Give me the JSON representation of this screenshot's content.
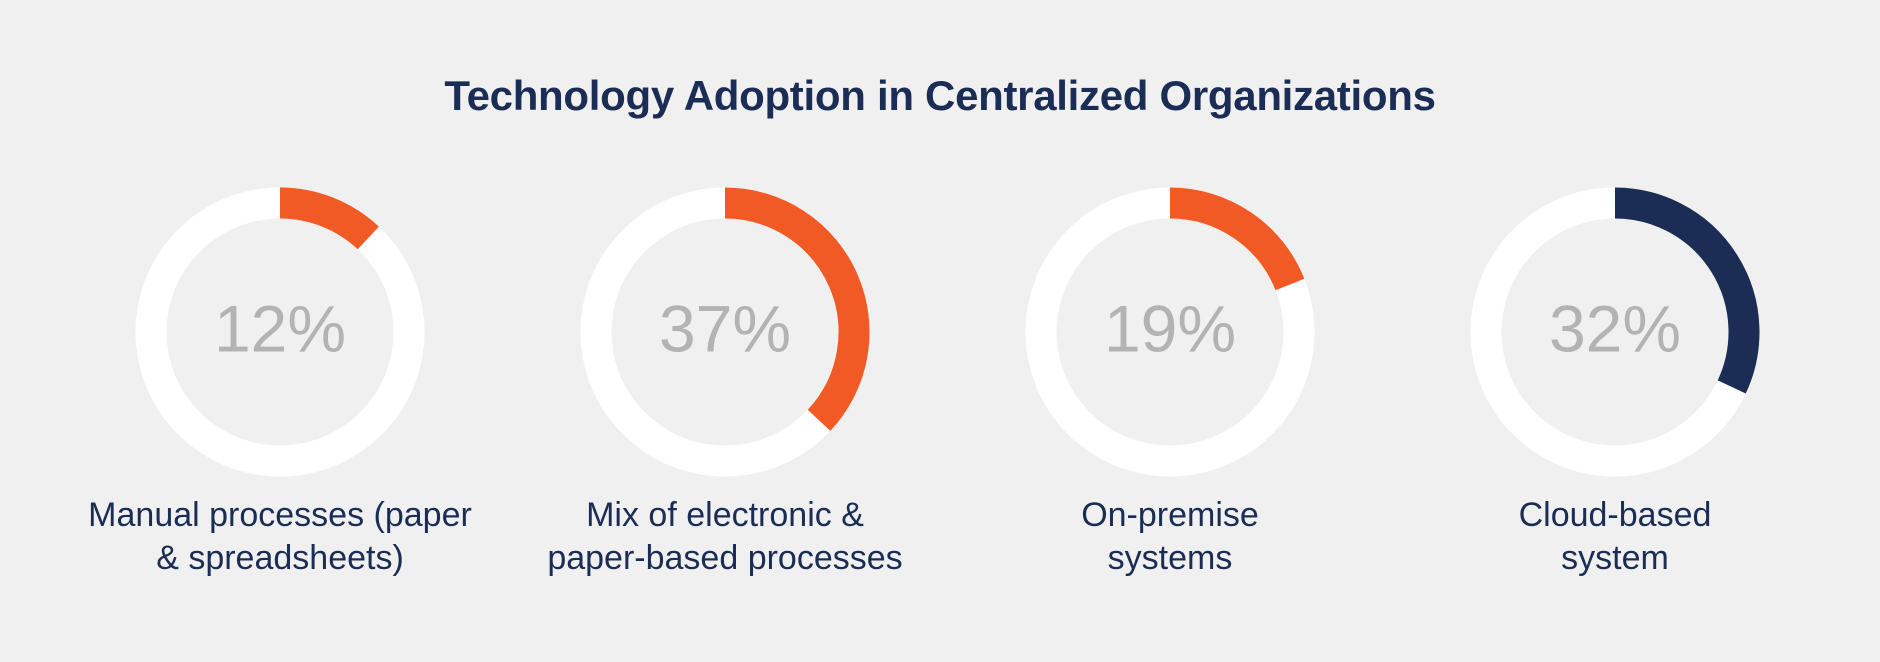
{
  "chart_data": {
    "type": "donut",
    "title": "Technology Adoption in Centralized Organizations",
    "categories": [
      "Manual processes (paper & spreadsheets)",
      "Mix of electronic & paper-based processes",
      "On-premise systems",
      "Cloud-based system"
    ],
    "values": [
      12,
      37,
      19,
      32
    ],
    "value_labels": [
      "12%",
      "37%",
      "19%",
      "32%"
    ],
    "label_lines": [
      [
        "Manual processes (paper",
        "& spreadsheets)"
      ],
      [
        "Mix of electronic &",
        "paper-based processes"
      ],
      [
        "On-premise",
        "systems"
      ],
      [
        "Cloud-based",
        "system"
      ]
    ],
    "colors": [
      "#f15a24",
      "#f15a24",
      "#f15a24",
      "#1b2d55"
    ],
    "track_color": "#ffffff",
    "percent_text_color": "#b3b3b3"
  }
}
